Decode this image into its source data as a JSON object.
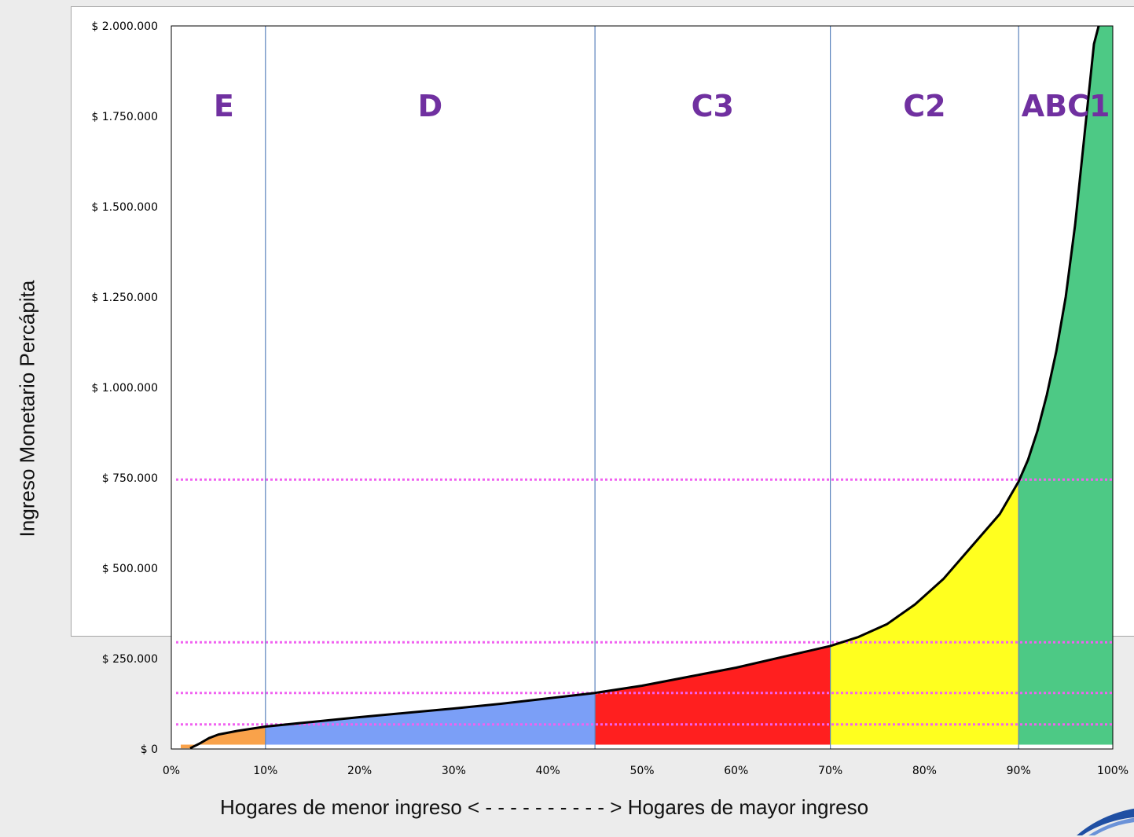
{
  "chart_data": {
    "type": "area",
    "title": "",
    "xlabel": "Hogares de menor ingreso < - - - - - - - - - - > Hogares de mayor ingreso",
    "ylabel": "Ingreso Monetario Percápita",
    "xlim": [
      0,
      100
    ],
    "ylim": [
      0,
      2000000
    ],
    "x_tick_labels": [
      "0%",
      "10%",
      "20%",
      "30%",
      "40%",
      "50%",
      "60%",
      "70%",
      "80%",
      "90%",
      "100%"
    ],
    "y_tick_labels": [
      "$ 0",
      "$ 250.000",
      "$ 500.000",
      "$ 750.000",
      "$ 1.000.000",
      "$ 1.250.000",
      "$ 1.500.000",
      "$ 1.750.000",
      "$ 2.000.000"
    ],
    "grid": false,
    "segments": [
      {
        "label": "E",
        "x_start": 1,
        "x_end": 10,
        "color": "#f9a24a"
      },
      {
        "label": "D",
        "x_start": 10,
        "x_end": 45,
        "color": "#7b9ff7"
      },
      {
        "label": "C3",
        "x_start": 45,
        "x_end": 70,
        "color": "#ff1f1f"
      },
      {
        "label": "C2",
        "x_start": 70,
        "x_end": 90,
        "color": "#ffff1f"
      },
      {
        "label": "ABC1",
        "x_start": 90,
        "x_end": 100,
        "color": "#4dc985"
      }
    ],
    "segment_boundaries_x": [
      10,
      45,
      70,
      90
    ],
    "thresholds_y": [
      68000,
      155000,
      295000,
      745000
    ],
    "curve": {
      "x": [
        2,
        3,
        4,
        5,
        7,
        10,
        15,
        20,
        25,
        30,
        35,
        40,
        45,
        50,
        55,
        60,
        65,
        70,
        73,
        76,
        79,
        82,
        85,
        88,
        90,
        91,
        92,
        93,
        94,
        95,
        96,
        97,
        98,
        98.5
      ],
      "y": [
        2000,
        15000,
        30000,
        40000,
        50000,
        62000,
        75000,
        88000,
        100000,
        112000,
        125000,
        140000,
        155000,
        175000,
        200000,
        225000,
        255000,
        285000,
        310000,
        345000,
        400000,
        470000,
        560000,
        650000,
        740000,
        800000,
        880000,
        980000,
        1100000,
        1250000,
        1450000,
        1700000,
        1950000,
        2000000
      ]
    },
    "colors": {
      "threshold_line": "#f062f0",
      "divider": "#5b83bd",
      "segment_label": "#7030a0",
      "curve": "#000000"
    }
  }
}
